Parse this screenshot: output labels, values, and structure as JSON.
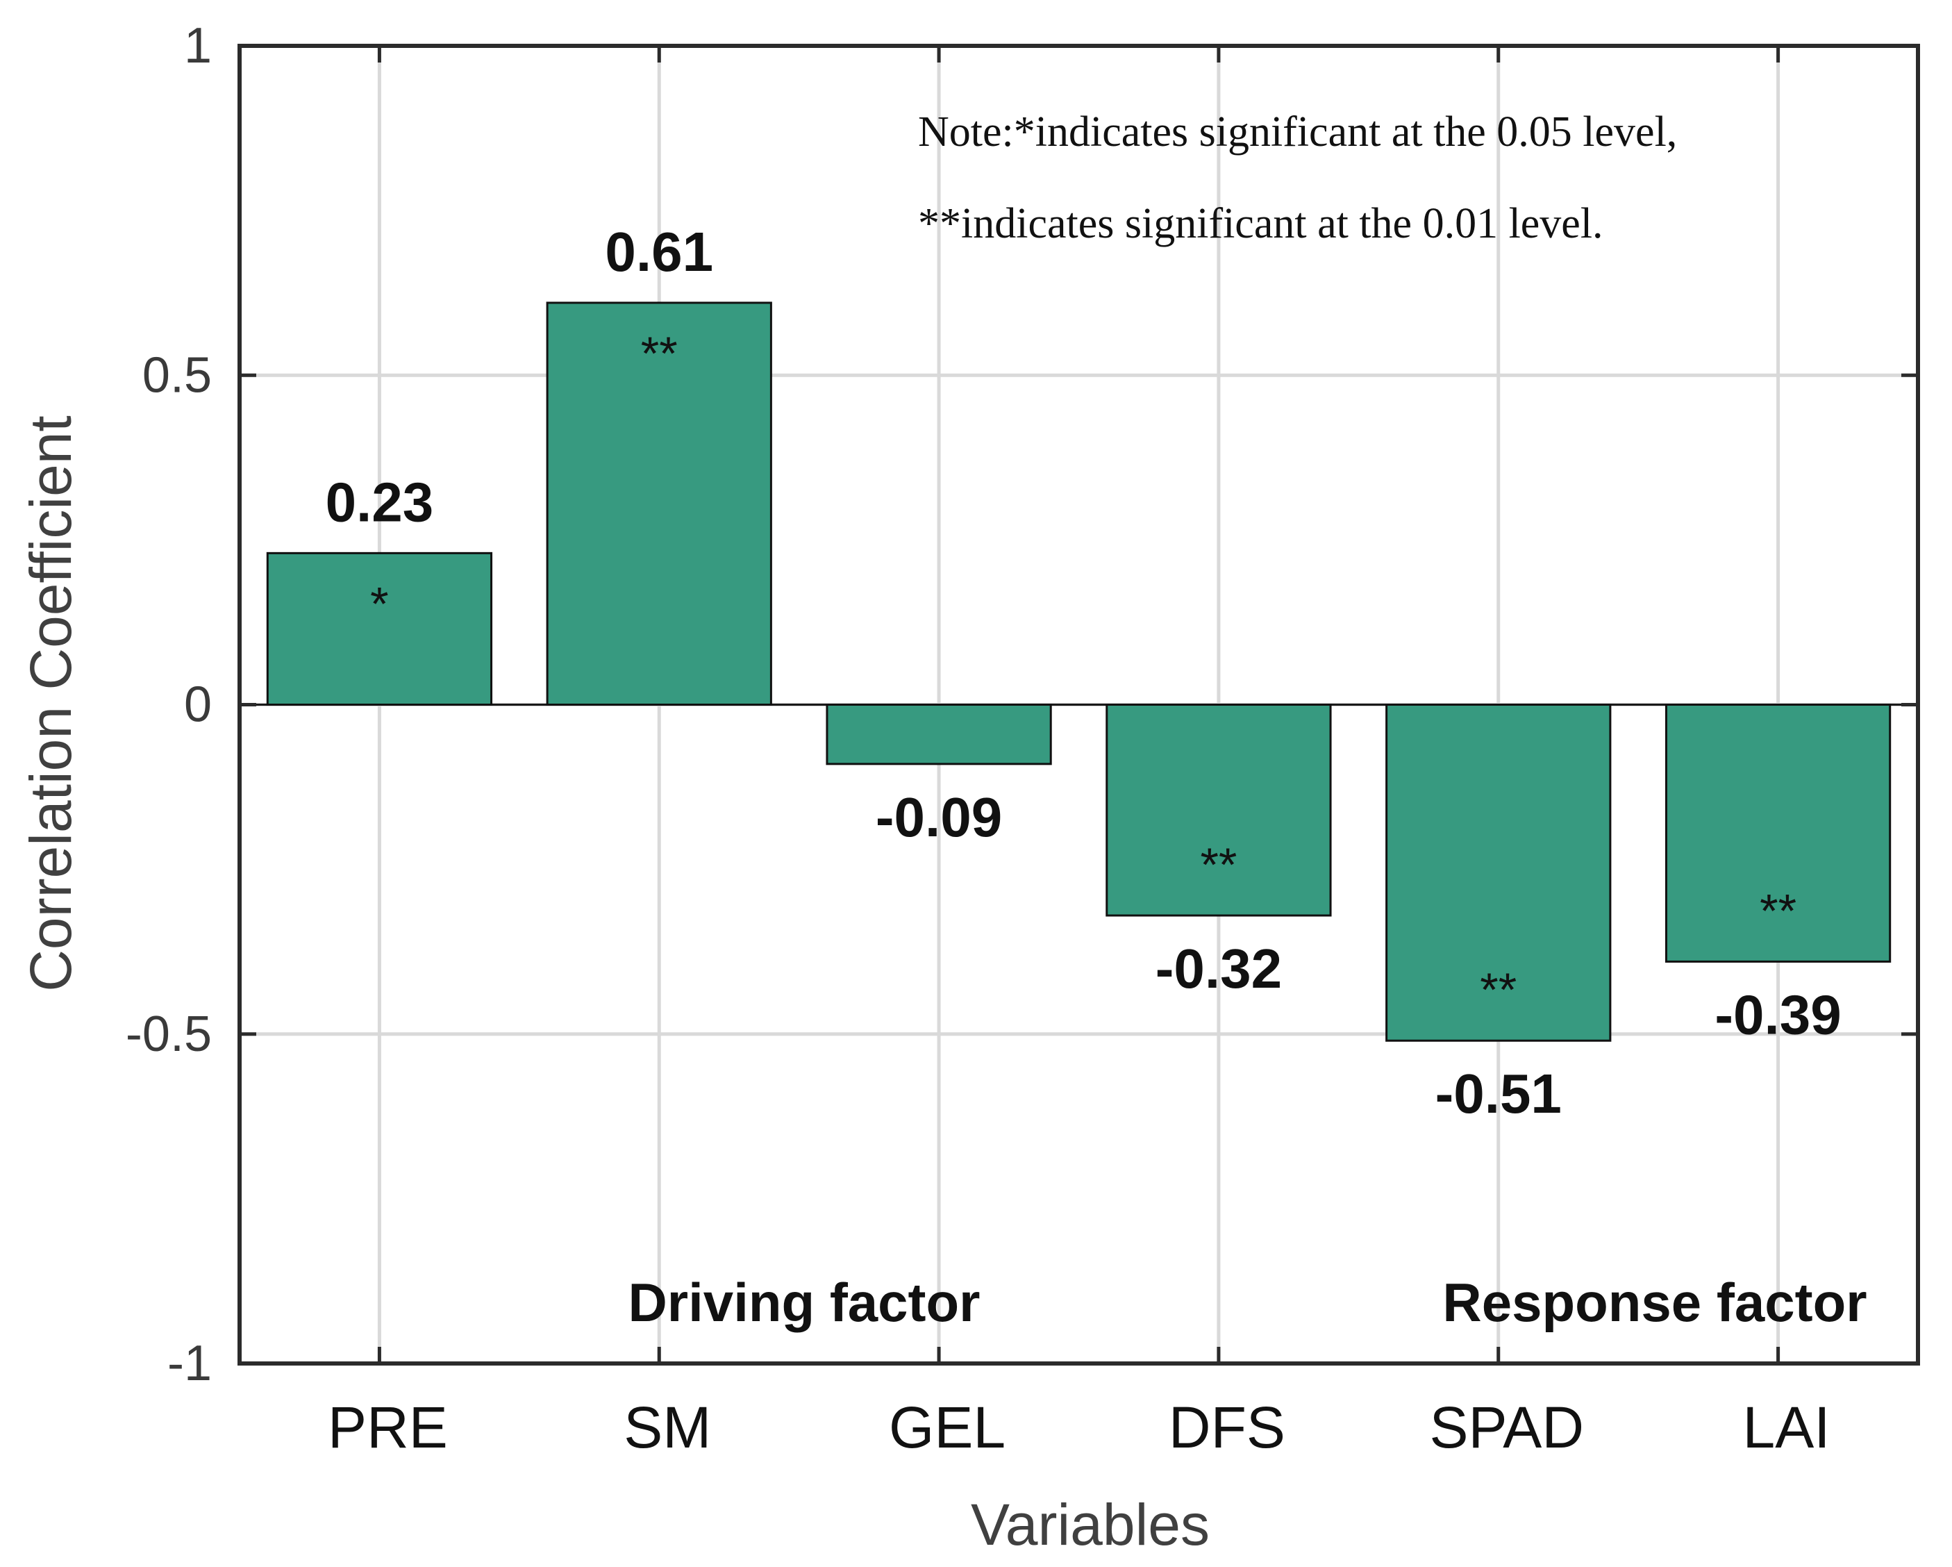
{
  "chart_data": {
    "type": "bar",
    "categories": [
      "PRE",
      "SM",
      "GEL",
      "DFS",
      "SPAD",
      "LAI"
    ],
    "values": [
      0.23,
      0.61,
      -0.09,
      -0.32,
      -0.51,
      -0.39
    ],
    "value_labels": [
      "0.23",
      "0.61",
      "-0.09",
      "-0.32",
      "-0.51",
      "-0.39"
    ],
    "significance": [
      "*",
      "**",
      "",
      "**",
      "**",
      "**"
    ],
    "xlabel": "Variables",
    "ylabel": "Correlation Coefficient",
    "ylim": [
      -1,
      1
    ],
    "yticks": [
      -1,
      -0.5,
      0,
      0.5,
      1
    ],
    "ytick_labels": [
      "-1",
      "-0.5",
      "0",
      "0.5",
      "1"
    ],
    "grid": true,
    "bar_color": "#379a80",
    "groups": [
      {
        "label": "Driving factor",
        "categories": [
          "PRE",
          "SM",
          "GEL"
        ]
      },
      {
        "label": "Response factor",
        "categories": [
          "DFS",
          "SPAD",
          "LAI"
        ]
      }
    ],
    "note": [
      "Note:*indicates significant at the 0.05 level,",
      "**indicates significant at the 0.01 level."
    ]
  }
}
